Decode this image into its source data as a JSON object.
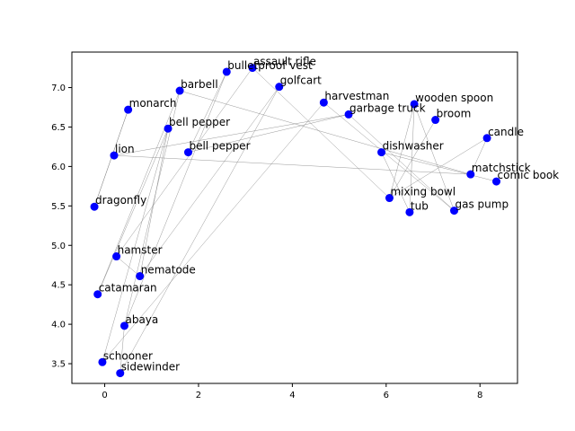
{
  "chart_data": {
    "type": "scatter",
    "title": "",
    "xlabel": "",
    "ylabel": "",
    "xlim": [
      -0.7,
      8.8
    ],
    "ylim": [
      3.25,
      7.45
    ],
    "xticks": [
      0,
      2,
      4,
      6,
      8
    ],
    "yticks": [
      3.5,
      4.0,
      4.5,
      5.0,
      5.5,
      6.0,
      6.5,
      7.0
    ],
    "grid": false,
    "legend": "none",
    "colors": {
      "point": "#0000ff",
      "edge": "#808080",
      "axis": "#000000"
    },
    "points": [
      {
        "label": "bulletproof vest",
        "x": 2.6,
        "y": 7.2
      },
      {
        "label": "assault rifle",
        "x": 3.15,
        "y": 7.25
      },
      {
        "label": "golfcart",
        "x": 3.72,
        "y": 7.01
      },
      {
        "label": "barbell",
        "x": 1.6,
        "y": 6.96
      },
      {
        "label": "harvestman",
        "x": 4.67,
        "y": 6.81
      },
      {
        "label": "wooden spoon",
        "x": 6.6,
        "y": 6.79
      },
      {
        "label": "monarch",
        "x": 0.5,
        "y": 6.72
      },
      {
        "label": "garbage truck",
        "x": 5.2,
        "y": 6.66
      },
      {
        "label": "broom",
        "x": 7.05,
        "y": 6.59
      },
      {
        "label": "bell pepper",
        "x": 1.35,
        "y": 6.48
      },
      {
        "label": "candle",
        "x": 8.15,
        "y": 6.36
      },
      {
        "label": "bell pepper",
        "x": 1.78,
        "y": 6.18
      },
      {
        "label": "dishwasher",
        "x": 5.9,
        "y": 6.18
      },
      {
        "label": "lion",
        "x": 0.2,
        "y": 6.14
      },
      {
        "label": "matchstick",
        "x": 7.8,
        "y": 5.9
      },
      {
        "label": "comic book",
        "x": 8.35,
        "y": 5.81
      },
      {
        "label": "mixing bowl",
        "x": 6.07,
        "y": 5.6
      },
      {
        "label": "dragonfly",
        "x": -0.22,
        "y": 5.49
      },
      {
        "label": "gas pump",
        "x": 7.45,
        "y": 5.44
      },
      {
        "label": "tub",
        "x": 6.5,
        "y": 5.42
      },
      {
        "label": "hamster",
        "x": 0.25,
        "y": 4.86
      },
      {
        "label": "nematode",
        "x": 0.75,
        "y": 4.61
      },
      {
        "label": "catamaran",
        "x": -0.15,
        "y": 4.38
      },
      {
        "label": "abaya",
        "x": 0.42,
        "y": 3.98
      },
      {
        "label": "schooner",
        "x": -0.05,
        "y": 3.52
      },
      {
        "label": "sidewinder",
        "x": 0.33,
        "y": 3.38
      }
    ],
    "edges": [
      [
        0,
        23
      ],
      [
        0,
        11
      ],
      [
        1,
        20
      ],
      [
        1,
        16
      ],
      [
        2,
        21
      ],
      [
        2,
        25
      ],
      [
        3,
        22
      ],
      [
        3,
        14
      ],
      [
        4,
        24
      ],
      [
        4,
        18
      ],
      [
        5,
        19
      ],
      [
        5,
        18
      ],
      [
        6,
        17
      ],
      [
        7,
        11
      ],
      [
        7,
        18
      ],
      [
        8,
        16
      ],
      [
        9,
        24
      ],
      [
        9,
        21
      ],
      [
        10,
        14
      ],
      [
        10,
        16
      ],
      [
        12,
        15
      ],
      [
        13,
        14
      ],
      [
        13,
        7
      ],
      [
        17,
        6
      ],
      [
        20,
        21
      ],
      [
        22,
        9
      ],
      [
        23,
        3
      ],
      [
        12,
        19
      ],
      [
        16,
        5
      ],
      [
        25,
        23
      ]
    ]
  }
}
